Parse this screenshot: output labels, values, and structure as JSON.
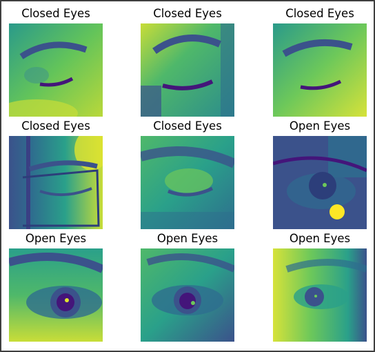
{
  "panels": [
    {
      "label": "Closed Eyes",
      "state": "closed"
    },
    {
      "label": "Closed Eyes",
      "state": "closed"
    },
    {
      "label": "Closed Eyes",
      "state": "closed"
    },
    {
      "label": "Closed Eyes",
      "state": "closed"
    },
    {
      "label": "Closed Eyes",
      "state": "closed"
    },
    {
      "label": "Open Eyes",
      "state": "open"
    },
    {
      "label": "Open Eyes",
      "state": "open"
    },
    {
      "label": "Open Eyes",
      "state": "open"
    },
    {
      "label": "Open Eyes",
      "state": "open"
    }
  ],
  "colors": {
    "purple": "#44157a",
    "blue": "#3b528b",
    "teal": "#21918c",
    "green": "#5ec962",
    "yellow": "#fde725"
  }
}
